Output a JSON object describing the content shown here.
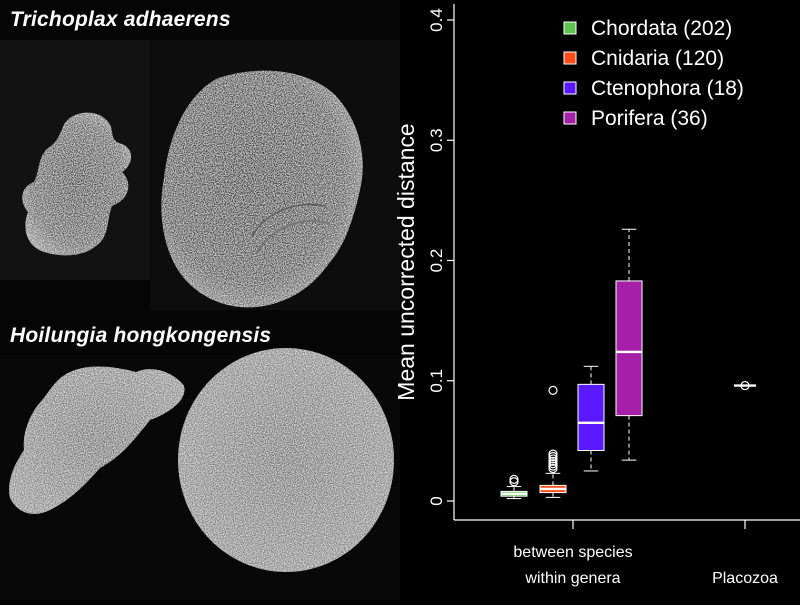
{
  "labels": {
    "species_top": "Trichoplax adhaerens",
    "species_bottom": "Hoilungia hongkongensis"
  },
  "colors": {
    "background": "#000000",
    "chordata": "#5dc34e",
    "cnidaria": "#ff4d1a",
    "ctenophora": "#5a1aff",
    "porifera": "#a51fa8"
  },
  "chart_data": {
    "type": "box",
    "title": "",
    "ylabel": "Mean uncorrected distance",
    "ylim": [
      0,
      0.4
    ],
    "yticks": [
      "0",
      "0.1",
      "0.2",
      "0.3",
      "0.4"
    ],
    "groups": [
      {
        "label": "between species\nwithin genera"
      },
      {
        "label": "Placozoa"
      }
    ],
    "legend": {
      "position": "top-right",
      "entries": [
        "Chordata (202)",
        "Cnidaria (120)",
        "Ctenophora (18)",
        "Porifera (36)"
      ]
    },
    "series": [
      {
        "name": "Chordata (202)",
        "color": "#5dc34e",
        "group": 0,
        "whisker_low": 0.002,
        "q1": 0.004,
        "median": 0.006,
        "q3": 0.008,
        "whisker_high": 0.012,
        "outliers": [
          0.016,
          0.018
        ]
      },
      {
        "name": "Cnidaria (120)",
        "color": "#ff4d1a",
        "group": 0,
        "whisker_low": 0.003,
        "q1": 0.007,
        "median": 0.01,
        "q3": 0.013,
        "whisker_high": 0.023,
        "outliers": [
          0.027,
          0.029,
          0.031,
          0.033,
          0.035,
          0.037,
          0.039,
          0.092
        ]
      },
      {
        "name": "Ctenophora (18)",
        "color": "#5a1aff",
        "group": 0,
        "whisker_low": 0.025,
        "q1": 0.042,
        "median": 0.065,
        "q3": 0.097,
        "whisker_high": 0.112,
        "outliers": []
      },
      {
        "name": "Porifera (36)",
        "color": "#a51fa8",
        "group": 0,
        "whisker_low": 0.034,
        "q1": 0.071,
        "median": 0.124,
        "q3": 0.183,
        "whisker_high": 0.226,
        "outliers": []
      },
      {
        "name": "Placozoa",
        "color": "#ffffff",
        "group": 1,
        "whisker_low": 0.096,
        "q1": 0.096,
        "median": 0.096,
        "q3": 0.096,
        "whisker_high": 0.096,
        "outliers": [
          0.096
        ]
      }
    ]
  }
}
